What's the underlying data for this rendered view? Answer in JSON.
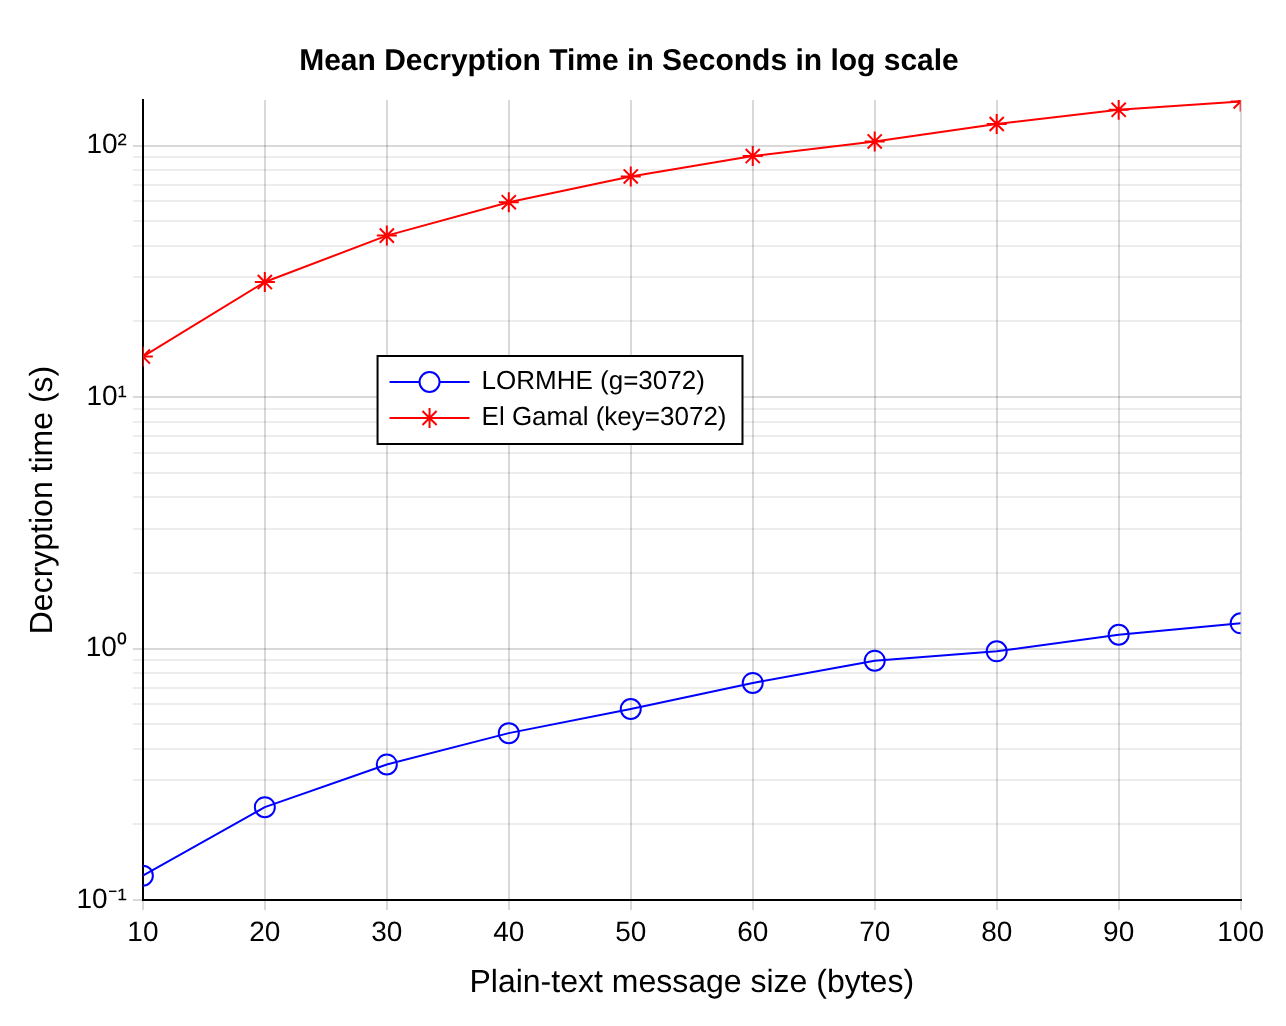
{
  "chart_data": {
    "type": "line",
    "title": "Mean Decryption Time in Seconds in log scale",
    "xlabel": "Plain-text message size (bytes)",
    "ylabel": "Decryption time (s)",
    "x": [
      10,
      20,
      30,
      40,
      50,
      60,
      70,
      80,
      90,
      100
    ],
    "series": [
      {
        "name": "LORMHE (g=3072)",
        "color": "#0000ff",
        "marker": "circle",
        "values": [
          0.125,
          0.234,
          0.346,
          0.461,
          0.575,
          0.73,
          0.895,
          0.975,
          1.135,
          1.26
        ]
      },
      {
        "name": "El Gamal (key=3072)",
        "color": "#ff0000",
        "marker": "cross",
        "values": [
          14.5,
          28.7,
          43.9,
          59.6,
          75.5,
          91,
          104,
          122,
          139,
          150
        ]
      }
    ],
    "log": "y",
    "xlim": [
      10,
      100
    ],
    "ylim": [
      0.1,
      152
    ],
    "xticks": [
      10,
      20,
      30,
      40,
      50,
      60,
      70,
      80,
      90,
      100
    ],
    "yticks": [
      {
        "value": 0.1,
        "label": "10⁻¹"
      },
      {
        "value": 0.2,
        "label": null
      },
      {
        "value": 0.3,
        "label": null
      },
      {
        "value": 0.4,
        "label": null
      },
      {
        "value": 0.5,
        "label": null
      },
      {
        "value": 0.6,
        "label": null
      },
      {
        "value": 0.7,
        "label": null
      },
      {
        "value": 0.8,
        "label": null
      },
      {
        "value": 0.9,
        "label": null
      },
      {
        "value": 1,
        "label": "10⁰"
      },
      {
        "value": 2,
        "label": null
      },
      {
        "value": 3,
        "label": null
      },
      {
        "value": 4,
        "label": null
      },
      {
        "value": 5,
        "label": null
      },
      {
        "value": 6,
        "label": null
      },
      {
        "value": 7,
        "label": null
      },
      {
        "value": 8,
        "label": null
      },
      {
        "value": 9,
        "label": null
      },
      {
        "value": 10,
        "label": "10¹"
      },
      {
        "value": 20,
        "label": null
      },
      {
        "value": 30,
        "label": null
      },
      {
        "value": 40,
        "label": null
      },
      {
        "value": 50,
        "label": null
      },
      {
        "value": 60,
        "label": null
      },
      {
        "value": 70,
        "label": null
      },
      {
        "value": 80,
        "label": null
      },
      {
        "value": 90,
        "label": null
      },
      {
        "value": 100,
        "label": "10²"
      }
    ],
    "grid": true,
    "legend": "center",
    "line_style": "solid"
  }
}
